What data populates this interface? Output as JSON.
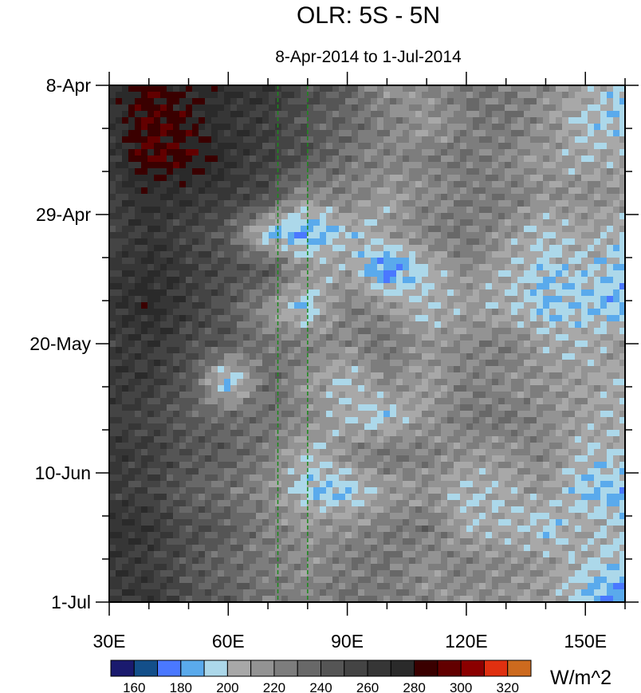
{
  "chart_data": {
    "type": "heatmap",
    "title": "OLR: 5S - 5N",
    "subtitle": "8-Apr-2014 to 1-Jul-2014",
    "xlabel": "",
    "ylabel": "",
    "units": "W/m^2",
    "xlim": [
      30,
      160
    ],
    "ylim_days": [
      0,
      84
    ],
    "x_ticks": [
      {
        "value": 30,
        "label": "30E"
      },
      {
        "value": 60,
        "label": "60E"
      },
      {
        "value": 90,
        "label": "90E"
      },
      {
        "value": 120,
        "label": "120E"
      },
      {
        "value": 150,
        "label": "150E"
      }
    ],
    "y_ticks": [
      {
        "day": 0,
        "label": "8-Apr"
      },
      {
        "day": 21,
        "label": "29-Apr"
      },
      {
        "day": 42,
        "label": "20-May"
      },
      {
        "day": 63,
        "label": "10-Jun"
      },
      {
        "day": 84,
        "label": "1-Jul"
      }
    ],
    "lon": [
      30,
      40,
      50,
      60,
      70,
      80,
      90,
      100,
      110,
      120,
      130,
      140,
      150,
      160
    ],
    "day": [
      0,
      6,
      12,
      18,
      24,
      30,
      36,
      42,
      48,
      54,
      60,
      66,
      72,
      78,
      84
    ],
    "values": [
      [
        270,
        285,
        275,
        270,
        265,
        250,
        240,
        215,
        220,
        230,
        225,
        220,
        210,
        190
      ],
      [
        265,
        290,
        280,
        265,
        260,
        245,
        235,
        225,
        210,
        225,
        230,
        215,
        200,
        195
      ],
      [
        260,
        290,
        285,
        270,
        255,
        245,
        230,
        220,
        225,
        230,
        220,
        215,
        205,
        210
      ],
      [
        260,
        270,
        265,
        260,
        250,
        215,
        225,
        210,
        220,
        225,
        230,
        215,
        220,
        215
      ],
      [
        255,
        265,
        255,
        240,
        190,
        180,
        200,
        210,
        225,
        230,
        215,
        200,
        210,
        200
      ],
      [
        260,
        270,
        260,
        250,
        245,
        215,
        210,
        175,
        200,
        220,
        205,
        195,
        200,
        190
      ],
      [
        265,
        275,
        260,
        245,
        215,
        190,
        225,
        215,
        200,
        210,
        205,
        190,
        195,
        185
      ],
      [
        260,
        265,
        250,
        240,
        230,
        225,
        220,
        230,
        215,
        220,
        225,
        210,
        205,
        215
      ],
      [
        265,
        260,
        245,
        185,
        235,
        215,
        200,
        220,
        210,
        225,
        220,
        215,
        210,
        205
      ],
      [
        260,
        255,
        240,
        235,
        230,
        220,
        205,
        195,
        215,
        225,
        230,
        220,
        210,
        205
      ],
      [
        265,
        260,
        245,
        240,
        225,
        200,
        220,
        230,
        225,
        215,
        215,
        220,
        200,
        205
      ],
      [
        260,
        255,
        240,
        230,
        220,
        195,
        190,
        210,
        215,
        200,
        205,
        215,
        190,
        185
      ],
      [
        270,
        265,
        250,
        240,
        225,
        215,
        220,
        225,
        230,
        205,
        205,
        195,
        210,
        200
      ],
      [
        265,
        260,
        245,
        235,
        225,
        220,
        225,
        230,
        215,
        225,
        220,
        215,
        200,
        195
      ],
      [
        260,
        265,
        250,
        240,
        225,
        220,
        230,
        225,
        220,
        215,
        215,
        210,
        190,
        175
      ]
    ],
    "reference_lines_lon": [
      72.5,
      80
    ],
    "levels": [
      160,
      170,
      180,
      190,
      200,
      210,
      220,
      230,
      240,
      250,
      260,
      270,
      280,
      290,
      300,
      310,
      320
    ],
    "colorbar_labels": [
      "160",
      "180",
      "200",
      "220",
      "240",
      "260",
      "280",
      "300",
      "320"
    ],
    "colors": [
      "#1a1a6e",
      "#134f8a",
      "#4a78ff",
      "#5aaaec",
      "#acd8ea",
      "#a8a8a8",
      "#939393",
      "#7d7d7d",
      "#686868",
      "#555555",
      "#444444",
      "#363636",
      "#2a2a2a",
      "#3a0000",
      "#620000",
      "#8b0000",
      "#e03010",
      "#cd6a1e"
    ],
    "reference_line_color": "#1a8a1a",
    "missing_color": "#c0c0c0"
  }
}
